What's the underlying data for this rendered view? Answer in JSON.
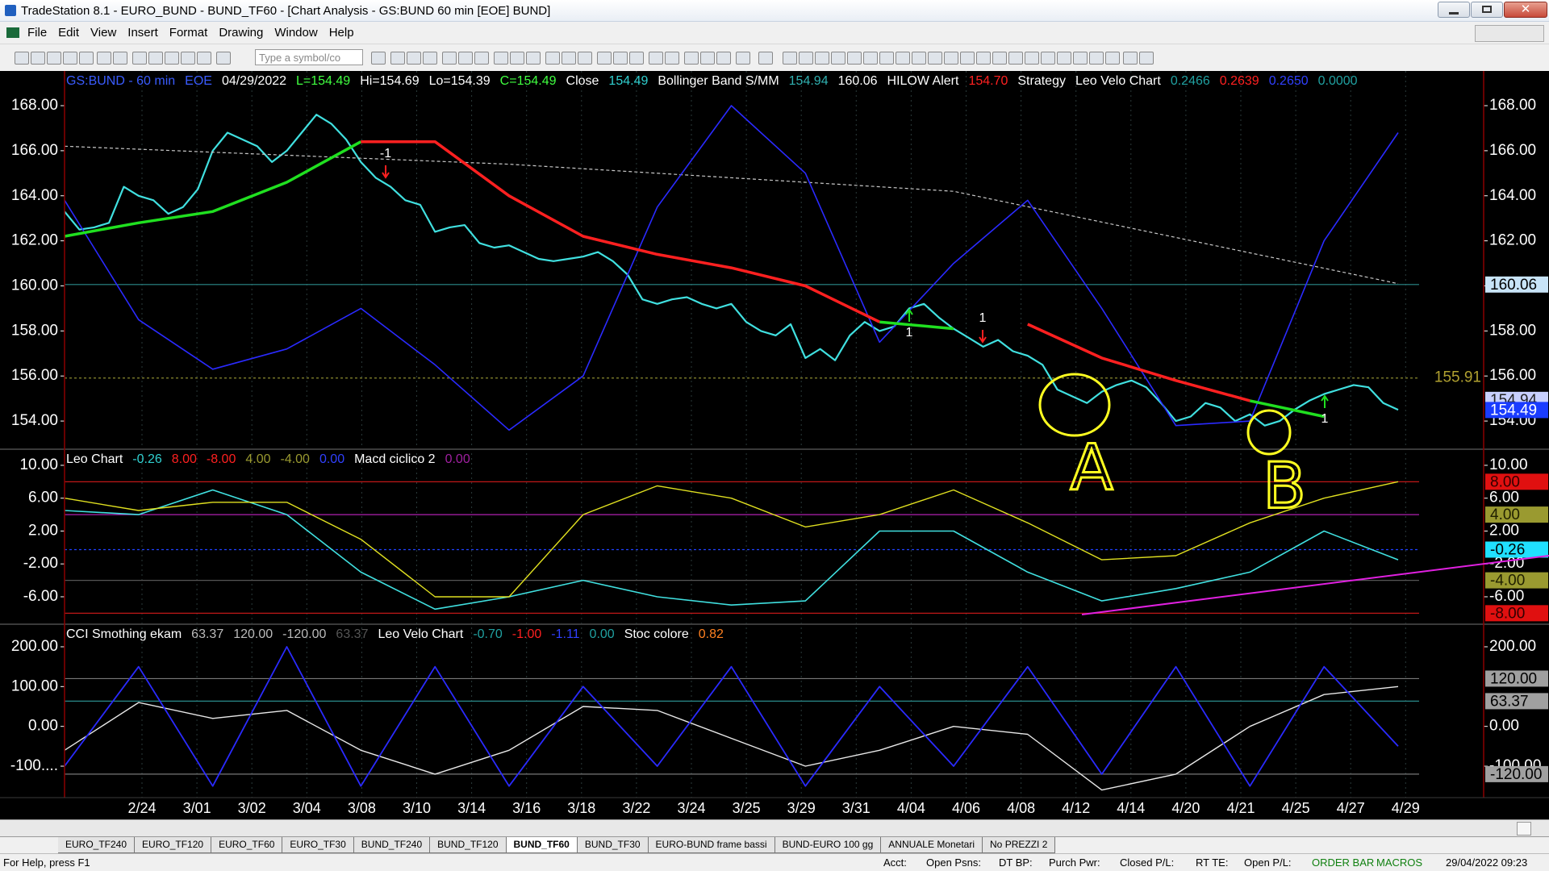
{
  "window": {
    "title": "TradeStation 8.1 - EURO_BUND - BUND_TF60 - [Chart Analysis - GS:BUND  60 min  [EOE] BUND]"
  },
  "menu": [
    "File",
    "Edit",
    "View",
    "Insert",
    "Format",
    "Drawing",
    "Window",
    "Help"
  ],
  "toolbar": {
    "symbol_placeholder": "Type a symbol/co"
  },
  "chart_data": {
    "type": "line",
    "categories": [
      "2/24",
      "3/01",
      "3/02",
      "3/04",
      "3/08",
      "3/10",
      "3/14",
      "3/16",
      "3/18",
      "3/22",
      "3/24",
      "3/25",
      "3/29",
      "3/31",
      "4/04",
      "4/06",
      "4/08",
      "4/12",
      "4/14",
      "4/20",
      "4/21",
      "4/25",
      "4/27",
      "4/29"
    ],
    "grid": true,
    "panels": [
      {
        "header": [
          {
            "text": "GS:BUND - 60 min",
            "color": "#3a5cff"
          },
          {
            "text": "EOE",
            "color": "#3a5cff"
          },
          {
            "text": "04/29/2022",
            "color": "#ffffff"
          },
          {
            "text": "L=154.49",
            "color": "#40ff40"
          },
          {
            "text": "Hi=154.69",
            "color": "#ffffff"
          },
          {
            "text": "Lo=154.39",
            "color": "#ffffff"
          },
          {
            "text": "C=154.49",
            "color": "#40ff40"
          },
          {
            "text": "Close",
            "color": "#ffffff"
          },
          {
            "text": "154.49",
            "color": "#30d0d0"
          },
          {
            "text": "Bollinger Band S/MM",
            "color": "#ffffff"
          },
          {
            "text": "154.94",
            "color": "#30b0b0"
          },
          {
            "text": "160.06",
            "color": "#ffffff"
          },
          {
            "text": "HILOW Alert",
            "color": "#ffffff"
          },
          {
            "text": "154.70",
            "color": "#ff2020"
          },
          {
            "text": "Strategy",
            "color": "#ffffff"
          },
          {
            "text": "Leo Velo Chart",
            "color": "#ffffff"
          },
          {
            "text": "0.2466",
            "color": "#20a0a0"
          },
          {
            "text": "0.2639",
            "color": "#ff2020"
          },
          {
            "text": "0.2650",
            "color": "#3040ff"
          },
          {
            "text": "0.0000",
            "color": "#20a0a0"
          }
        ],
        "ylim": [
          152.75,
          169.54
        ],
        "yticks": [
          {
            "value": 168,
            "label": "168.00"
          },
          {
            "value": 166,
            "label": "166.00"
          },
          {
            "value": 164,
            "label": "164.00"
          },
          {
            "value": 162,
            "label": "162.00"
          },
          {
            "value": 160,
            "label": "160.00"
          },
          {
            "value": 158,
            "label": "158.00"
          },
          {
            "value": 156,
            "label": "156.00"
          },
          {
            "value": 154,
            "label": "154.00"
          }
        ],
        "levels": [
          {
            "value": 160.06,
            "color": "#2a8a8a",
            "dash": false
          },
          {
            "value": 155.91,
            "color": "#8a8a30",
            "dash": true
          }
        ],
        "flags": [
          {
            "value": 160.06,
            "label": "160.06",
            "bg": "#c8e4f8",
            "fg": "#000000"
          },
          {
            "value": 154.94,
            "label": "154.94",
            "bg": "#c8d0ff",
            "fg": "#222222"
          },
          {
            "value": 154.49,
            "label": "154.49",
            "bg": "#1a3cff",
            "fg": "#ffffff"
          }
        ],
        "line_label": {
          "value": 155.91,
          "label": "155.91",
          "color": "#b0a030"
        },
        "series": [
          {
            "name": "Close",
            "color": "#40e0e0",
            "width": 2.2,
            "values": [
              163.3,
              162.5,
              162.6,
              162.8,
              164.4,
              164.0,
              163.8,
              163.2,
              163.5,
              164.3,
              166.0,
              166.8,
              166.5,
              166.2,
              165.5,
              166.0,
              166.8,
              167.6,
              167.2,
              166.5,
              165.5,
              164.8,
              164.4,
              163.8,
              163.6,
              162.4,
              162.6,
              162.7,
              161.9,
              161.7,
              161.8,
              161.5,
              161.2,
              161.1,
              161.2,
              161.3,
              161.5,
              161.1,
              160.5,
              159.4,
              159.2,
              159.4,
              159.5,
              159.2,
              159.0,
              159.2,
              158.4,
              158.0,
              157.8,
              158.3,
              156.8,
              157.2,
              156.7,
              157.8,
              158.4,
              158.0,
              158.2,
              159.0,
              159.2,
              158.6,
              158.1,
              157.7,
              157.3,
              157.6,
              157.1,
              156.9,
              156.5,
              155.4,
              155.1,
              154.8,
              155.3,
              155.6,
              155.8,
              155.5,
              154.8,
              154.0,
              154.2,
              154.8,
              154.6,
              154.0,
              154.3,
              153.8,
              154.0,
              154.5,
              154.9,
              155.2,
              155.4,
              155.6,
              155.5,
              154.8,
              154.5
            ]
          },
          {
            "name": "Long average",
            "color": "#c8c8c8",
            "width": 1.2,
            "dash": true,
            "values": [
              166.2,
              165.4,
              164.2,
              160.1
            ]
          },
          {
            "name": "Leo Velo",
            "color": "#2a2aff",
            "width": 1.6,
            "values": [
              163.8,
              158.5,
              156.3,
              157.2,
              159.0,
              156.5,
              153.6,
              156.0,
              163.5,
              168.0,
              165.0,
              157.5,
              161.0,
              163.8,
              159.0,
              153.8,
              154.0,
              162.0,
              166.8
            ]
          },
          {
            "name": "Strategy up",
            "color": "#20e020",
            "width": 3.5,
            "values": [
              162.2,
              162.8,
              163.3,
              164.6,
              166.4,
              null,
              null,
              null,
              null,
              null,
              null,
              158.4,
              158.1,
              null,
              null,
              null,
              154.9,
              154.2,
              null
            ]
          },
          {
            "name": "Strategy down",
            "color": "#ff2020",
            "width": 3.5,
            "values": [
              null,
              null,
              null,
              null,
              166.4,
              166.4,
              164.0,
              162.2,
              161.4,
              160.8,
              160.0,
              158.4,
              null,
              158.3,
              156.8,
              155.8,
              154.9,
              null,
              null
            ]
          }
        ]
      },
      {
        "header": [
          {
            "text": "Leo Chart",
            "color": "#ffffff"
          },
          {
            "text": "-0.26",
            "color": "#30d0d0"
          },
          {
            "text": "8.00",
            "color": "#ff2020"
          },
          {
            "text": "-8.00",
            "color": "#ff2020"
          },
          {
            "text": "4.00",
            "color": "#9a9a30"
          },
          {
            "text": "-4.00",
            "color": "#9a9a30"
          },
          {
            "text": "0.00",
            "color": "#3040ff"
          },
          {
            "text": "Macd ciclico 2",
            "color": "#ffffff"
          },
          {
            "text": "0.00",
            "color": "#a020a0"
          }
        ],
        "ylim": [
          -9.34,
          11.96
        ],
        "yticks": [
          {
            "value": 10,
            "label": "10.00"
          },
          {
            "value": 6,
            "label": "6.00"
          },
          {
            "value": 2,
            "label": "2.00"
          },
          {
            "value": -2,
            "label": "-2.00"
          },
          {
            "value": -6,
            "label": "-6.00"
          }
        ],
        "levels": [
          {
            "value": 8,
            "color": "#c01818",
            "dash": false
          },
          {
            "value": 4,
            "color": "#b020b0",
            "dash": false
          },
          {
            "value": -4,
            "color": "#555555",
            "dash": false
          },
          {
            "value": -8,
            "color": "#c01818",
            "dash": false
          },
          {
            "value": -0.26,
            "color": "#2040ff",
            "dash": true
          }
        ],
        "flags": [
          {
            "value": 8,
            "label": "8.00",
            "bg": "#e01010",
            "fg": "#300000"
          },
          {
            "value": 4,
            "label": "4.00",
            "bg": "#9a9a30",
            "fg": "#202000"
          },
          {
            "value": -0.26,
            "label": "-0.26",
            "bg": "#20e0ff",
            "fg": "#000000"
          },
          {
            "value": -4,
            "label": "-4.00",
            "bg": "#9a9a30",
            "fg": "#202000"
          },
          {
            "value": -8,
            "label": "-8.00",
            "bg": "#e01010",
            "fg": "#300000"
          }
        ],
        "series": [
          {
            "name": "Leo Chart",
            "color": "#40e0e0",
            "width": 1.6,
            "values": [
              4.5,
              4.0,
              7.0,
              4.0,
              -3.0,
              -7.5,
              -6.0,
              -4.0,
              -6.0,
              -7.0,
              -6.5,
              2.0,
              2.0,
              -3.0,
              -6.5,
              -5.0,
              -3.0,
              2.0,
              -1.5
            ]
          },
          {
            "name": "Macd ciclico 2",
            "color": "#e0e020",
            "width": 1.4,
            "values": [
              6.0,
              4.5,
              5.5,
              5.5,
              1.0,
              -6.0,
              -6.0,
              4.0,
              7.5,
              6.0,
              2.5,
              4.0,
              7.0,
              3.0,
              -1.5,
              -1.0,
              3.0,
              6.0,
              8.0
            ]
          }
        ]
      },
      {
        "header": [
          {
            "text": "CCI Smothing ekam",
            "color": "#ffffff"
          },
          {
            "text": "63.37",
            "color": "#bbbbbb"
          },
          {
            "text": "120.00",
            "color": "#bbbbbb"
          },
          {
            "text": "-120.00",
            "color": "#bbbbbb"
          },
          {
            "text": "63.37",
            "color": "#555555"
          },
          {
            "text": "Leo Velo Chart",
            "color": "#ffffff"
          },
          {
            "text": "-0.70",
            "color": "#20a0a0"
          },
          {
            "text": "-1.00",
            "color": "#ff2020"
          },
          {
            "text": "-1.11",
            "color": "#3040ff"
          },
          {
            "text": "0.00",
            "color": "#20a0a0"
          },
          {
            "text": "Stoc colore",
            "color": "#ffffff"
          },
          {
            "text": "0.82",
            "color": "#ff8020"
          }
        ],
        "ylim": [
          -179,
          256.7
        ],
        "yticks": [
          {
            "value": 200,
            "label": "200.00"
          },
          {
            "value": 100,
            "label": "100.00"
          },
          {
            "value": 0,
            "label": "0.00"
          },
          {
            "value": -100,
            "label": "-100...."
          }
        ],
        "right_ticks": [
          {
            "value": 200,
            "label": "200.00"
          },
          {
            "value": 0,
            "label": "0.00"
          },
          {
            "value": -100,
            "label": "-100.00"
          }
        ],
        "levels": [
          {
            "value": 120,
            "color": "#777777",
            "dash": false
          },
          {
            "value": 63.37,
            "color": "#2a8a8a",
            "dash": false
          },
          {
            "value": -120,
            "color": "#777777",
            "dash": false
          }
        ],
        "flags": [
          {
            "value": 120,
            "label": "120.00",
            "bg": "#a0a0a0",
            "fg": "#000000"
          },
          {
            "value": 63.37,
            "label": "63.37",
            "bg": "#a0a0a0",
            "fg": "#000000"
          },
          {
            "value": -120,
            "label": "-120.00",
            "bg": "#a0a0a0",
            "fg": "#000000"
          }
        ],
        "series": [
          {
            "name": "CCI Smothing ekam",
            "color": "#e8e8e8",
            "width": 1.4,
            "values": [
              -60,
              60,
              20,
              40,
              -60,
              -120,
              -60,
              50,
              40,
              -30,
              -100,
              -60,
              0,
              -20,
              -160,
              -120,
              0,
              80,
              100
            ]
          },
          {
            "name": "Leo Velo Chart",
            "color": "#2a2aff",
            "width": 1.8,
            "values": [
              -100,
              150,
              -150,
              200,
              -150,
              150,
              -150,
              100,
              -100,
              150,
              -150,
              100,
              -100,
              150,
              -120,
              150,
              -150,
              150,
              -50
            ]
          }
        ]
      }
    ],
    "annotations": [
      "-1",
      "1",
      "1",
      "1"
    ],
    "handwriting": [
      "A",
      "B"
    ]
  },
  "tabs": [
    "EURO_TF240",
    "EURO_TF120",
    "EURO_TF60",
    "EURO_TF30",
    "BUND_TF240",
    "BUND_TF120",
    "BUND_TF60",
    "BUND_TF30",
    "EURO-BUND frame bassi",
    "BUND-EURO 100 gg",
    "ANNUALE Monetari",
    "No PREZZI 2"
  ],
  "active_tab": "BUND_TF60",
  "status": [
    "For Help, press F1",
    "Acct:",
    "Open Psns:",
    "DT BP:",
    "Purch Pwr:",
    "Closed P/L:",
    "RT TE:",
    "Open P/L:",
    "ORDER BAR",
    "MACROS",
    "29/04/2022 09:23"
  ]
}
